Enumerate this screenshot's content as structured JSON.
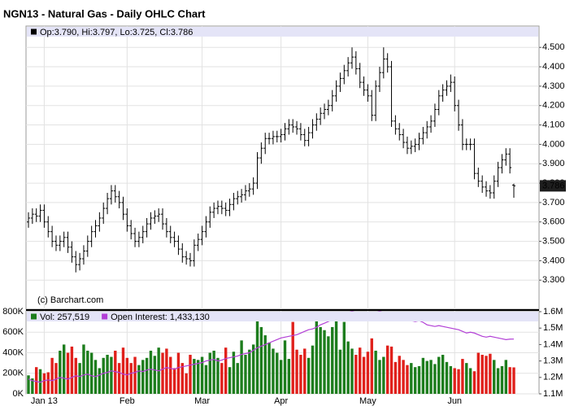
{
  "chart_data": [
    {
      "type": "ohlc",
      "title": "NGN13 - Natural Gas - Daily OHLC Chart",
      "legend_labels": [
        "Op:",
        ", Hi:",
        ", Lo:",
        ", Cl:"
      ],
      "last_value_labels": [
        "3.790",
        "3.797",
        "3.725",
        "3.786"
      ],
      "watermark": "(c) Barchart.com",
      "color": "#000000",
      "legend_color": "#000000",
      "grid": true,
      "ylim": [
        3.15,
        4.61
      ],
      "yticks": [
        {
          "value": 3.3,
          "label": "3.300"
        },
        {
          "value": 3.4,
          "label": "3.400"
        },
        {
          "value": 3.5,
          "label": "3.500"
        },
        {
          "value": 3.6,
          "label": "3.600"
        },
        {
          "value": 3.7,
          "label": "3.700"
        },
        {
          "value": 3.8,
          "label": "3.800"
        },
        {
          "value": 3.9,
          "label": "3.900"
        },
        {
          "value": 4.0,
          "label": "4.000"
        },
        {
          "value": 4.1,
          "label": "4.100"
        },
        {
          "value": 4.2,
          "label": "4.200"
        },
        {
          "value": 4.3,
          "label": "4.300"
        },
        {
          "value": 4.4,
          "label": "4.400"
        },
        {
          "value": 4.5,
          "label": "4.500"
        }
      ],
      "open": [
        3.6,
        3.62,
        3.64,
        3.63,
        3.66,
        3.6,
        3.55,
        3.5,
        3.48,
        3.5,
        3.52,
        3.47,
        3.42,
        3.38,
        3.41,
        3.45,
        3.5,
        3.55,
        3.58,
        3.62,
        3.67,
        3.72,
        3.76,
        3.73,
        3.7,
        3.64,
        3.58,
        3.54,
        3.5,
        3.52,
        3.55,
        3.59,
        3.62,
        3.63,
        3.64,
        3.59,
        3.55,
        3.52,
        3.5,
        3.46,
        3.42,
        3.41,
        3.4,
        3.48,
        3.51,
        3.55,
        3.6,
        3.65,
        3.67,
        3.68,
        3.67,
        3.66,
        3.69,
        3.72,
        3.73,
        3.74,
        3.76,
        3.77,
        3.8,
        3.93,
        3.98,
        4.03,
        4.03,
        4.04,
        4.04,
        4.05,
        4.08,
        4.1,
        4.09,
        4.08,
        4.05,
        4.02,
        4.06,
        4.1,
        4.13,
        4.16,
        4.18,
        4.2,
        4.25,
        4.3,
        4.34,
        4.38,
        4.42,
        4.45,
        4.39,
        4.32,
        4.28,
        4.25,
        4.15,
        4.3,
        4.37,
        4.44,
        4.4,
        4.12,
        4.08,
        4.05,
        4.01,
        3.98,
        3.99,
        4.0,
        4.03,
        4.06,
        4.09,
        4.12,
        4.18,
        4.25,
        4.28,
        4.3,
        4.32,
        4.2,
        4.1,
        4.0,
        4.0,
        4.0,
        3.85,
        3.81,
        3.78,
        3.76,
        3.75,
        3.81,
        3.88,
        3.92,
        3.95,
        3.79
      ],
      "high": [
        3.65,
        3.67,
        3.67,
        3.69,
        3.69,
        3.63,
        3.58,
        3.53,
        3.53,
        3.55,
        3.55,
        3.5,
        3.45,
        3.44,
        3.48,
        3.53,
        3.58,
        3.61,
        3.65,
        3.7,
        3.75,
        3.79,
        3.79,
        3.76,
        3.73,
        3.67,
        3.61,
        3.57,
        3.55,
        3.58,
        3.62,
        3.65,
        3.66,
        3.67,
        3.67,
        3.62,
        3.58,
        3.55,
        3.53,
        3.49,
        3.45,
        3.44,
        3.51,
        3.54,
        3.58,
        3.63,
        3.68,
        3.7,
        3.71,
        3.71,
        3.7,
        3.72,
        3.75,
        3.76,
        3.77,
        3.79,
        3.8,
        3.83,
        3.96,
        4.01,
        4.06,
        4.06,
        4.07,
        4.07,
        4.08,
        4.11,
        4.13,
        4.13,
        4.12,
        4.11,
        4.08,
        4.09,
        4.13,
        4.16,
        4.19,
        4.21,
        4.23,
        4.28,
        4.33,
        4.37,
        4.41,
        4.45,
        4.5,
        4.48,
        4.42,
        4.35,
        4.31,
        4.28,
        4.33,
        4.4,
        4.5,
        4.47,
        4.43,
        4.15,
        4.11,
        4.08,
        4.04,
        4.02,
        4.03,
        4.06,
        4.09,
        4.12,
        4.15,
        4.21,
        4.28,
        4.31,
        4.33,
        4.36,
        4.35,
        4.23,
        4.13,
        4.03,
        4.03,
        4.03,
        3.88,
        3.84,
        3.81,
        3.79,
        3.84,
        3.91,
        3.95,
        3.98,
        3.98,
        3.797
      ],
      "low": [
        3.57,
        3.59,
        3.6,
        3.6,
        3.57,
        3.52,
        3.47,
        3.45,
        3.45,
        3.47,
        3.44,
        3.39,
        3.34,
        3.35,
        3.38,
        3.42,
        3.47,
        3.52,
        3.55,
        3.59,
        3.64,
        3.69,
        3.7,
        3.67,
        3.61,
        3.55,
        3.51,
        3.47,
        3.47,
        3.49,
        3.52,
        3.56,
        3.59,
        3.6,
        3.56,
        3.52,
        3.49,
        3.47,
        3.43,
        3.39,
        3.38,
        3.37,
        3.37,
        3.45,
        3.48,
        3.52,
        3.57,
        3.62,
        3.64,
        3.64,
        3.63,
        3.63,
        3.66,
        3.69,
        3.7,
        3.71,
        3.73,
        3.74,
        3.77,
        3.9,
        3.95,
        4.0,
        4.0,
        4.01,
        4.01,
        4.02,
        4.05,
        4.06,
        4.05,
        4.02,
        3.99,
        3.99,
        4.03,
        4.07,
        4.1,
        4.13,
        4.15,
        4.17,
        4.22,
        4.27,
        4.31,
        4.35,
        4.39,
        4.36,
        4.29,
        4.25,
        4.22,
        4.12,
        4.12,
        4.27,
        4.34,
        4.37,
        4.09,
        4.05,
        4.02,
        3.98,
        3.95,
        3.95,
        3.96,
        3.97,
        4.0,
        4.03,
        4.06,
        4.09,
        4.15,
        4.22,
        4.25,
        4.27,
        4.17,
        4.07,
        3.97,
        3.97,
        3.97,
        3.82,
        3.78,
        3.75,
        3.73,
        3.72,
        3.72,
        3.78,
        3.85,
        3.89,
        3.85,
        3.725
      ],
      "close": [
        3.62,
        3.64,
        3.63,
        3.66,
        3.6,
        3.55,
        3.5,
        3.48,
        3.5,
        3.52,
        3.47,
        3.42,
        3.38,
        3.41,
        3.45,
        3.5,
        3.55,
        3.58,
        3.62,
        3.67,
        3.72,
        3.76,
        3.73,
        3.7,
        3.64,
        3.58,
        3.54,
        3.5,
        3.52,
        3.55,
        3.59,
        3.62,
        3.63,
        3.64,
        3.59,
        3.55,
        3.52,
        3.5,
        3.46,
        3.42,
        3.41,
        3.4,
        3.48,
        3.51,
        3.55,
        3.6,
        3.65,
        3.67,
        3.68,
        3.67,
        3.66,
        3.69,
        3.72,
        3.73,
        3.74,
        3.76,
        3.77,
        3.8,
        3.93,
        3.98,
        4.03,
        4.03,
        4.04,
        4.04,
        4.05,
        4.08,
        4.1,
        4.09,
        4.08,
        4.05,
        4.02,
        4.06,
        4.1,
        4.13,
        4.16,
        4.18,
        4.2,
        4.25,
        4.3,
        4.34,
        4.38,
        4.42,
        4.45,
        4.39,
        4.32,
        4.28,
        4.25,
        4.15,
        4.3,
        4.37,
        4.44,
        4.4,
        4.12,
        4.08,
        4.05,
        4.01,
        3.98,
        3.99,
        4.0,
        4.03,
        4.06,
        4.09,
        4.12,
        4.18,
        4.25,
        4.28,
        4.3,
        4.32,
        4.2,
        4.1,
        4.0,
        4.0,
        4.0,
        3.85,
        3.81,
        3.78,
        3.76,
        3.75,
        3.81,
        3.88,
        3.92,
        3.95,
        3.88,
        3.786
      ]
    },
    {
      "type": "bar",
      "categories": [
        null,
        null,
        null,
        null,
        "Jan 13",
        null,
        null,
        null,
        null,
        null,
        null,
        null,
        null,
        null,
        null,
        null,
        null,
        null,
        null,
        null,
        null,
        null,
        null,
        null,
        null,
        "Feb",
        null,
        null,
        null,
        null,
        null,
        null,
        null,
        null,
        null,
        null,
        null,
        null,
        null,
        null,
        null,
        null,
        null,
        null,
        "Mar",
        null,
        null,
        null,
        null,
        null,
        null,
        null,
        null,
        null,
        null,
        null,
        null,
        null,
        null,
        null,
        null,
        null,
        null,
        null,
        "Apr",
        null,
        null,
        null,
        null,
        null,
        null,
        null,
        null,
        null,
        null,
        null,
        null,
        null,
        null,
        null,
        null,
        null,
        null,
        null,
        null,
        null,
        "May",
        null,
        null,
        null,
        null,
        null,
        null,
        null,
        null,
        null,
        null,
        null,
        null,
        null,
        null,
        null,
        null,
        null,
        null,
        null,
        null,
        null,
        "Jun",
        null,
        null,
        null,
        null,
        null,
        null,
        null,
        null,
        null,
        null,
        null,
        null,
        null,
        null,
        null
      ],
      "grid": true,
      "ylim": [
        0,
        800000
      ],
      "yticks": [
        {
          "value": 0,
          "label": "0K"
        },
        {
          "value": 200000,
          "label": "200K"
        },
        {
          "value": 400000,
          "label": "400K"
        },
        {
          "value": 600000,
          "label": "600K"
        },
        {
          "value": 800000,
          "label": "800K"
        }
      ],
      "y2lim": [
        1100000,
        1600000
      ],
      "y2ticks": [
        {
          "value": 1100000,
          "label": "1.1M"
        },
        {
          "value": 1200000,
          "label": "1.2M"
        },
        {
          "value": 1300000,
          "label": "1.3M"
        },
        {
          "value": 1400000,
          "label": "1.4M"
        },
        {
          "value": 1500000,
          "label": "1.5M"
        },
        {
          "value": 1600000,
          "label": "1.6M"
        }
      ],
      "series": [
        {
          "name": "Vol:",
          "value_label": "257,519",
          "color": "#1d7d1d",
          "up_color": "#1d7d1d",
          "down_color": "#e0201b",
          "values": [
            180000,
            150000,
            260000,
            240000,
            200000,
            210000,
            350000,
            300000,
            420000,
            480000,
            400000,
            460000,
            350000,
            300000,
            480000,
            420000,
            400000,
            330000,
            250000,
            350000,
            380000,
            360000,
            420000,
            300000,
            450000,
            350000,
            300000,
            360000,
            280000,
            330000,
            350000,
            420000,
            370000,
            450000,
            400000,
            440000,
            360000,
            250000,
            400000,
            300000,
            200000,
            380000,
            340000,
            330000,
            360000,
            280000,
            400000,
            420000,
            350000,
            300000,
            450000,
            260000,
            410000,
            300000,
            520000,
            380000,
            430000,
            480000,
            780000,
            650000,
            570000,
            500000,
            440000,
            400000,
            330000,
            520000,
            340000,
            700000,
            430000,
            380000,
            440000,
            350000,
            470000,
            800000,
            650000,
            620000,
            560000,
            650000,
            710000,
            430000,
            700000,
            510000,
            440000,
            380000,
            450000,
            360000,
            410000,
            540000,
            420000,
            330000,
            360000,
            470000,
            460000,
            310000,
            370000,
            330000,
            280000,
            300000,
            260000,
            270000,
            350000,
            320000,
            330000,
            290000,
            360000,
            380000,
            310000,
            270000,
            250000,
            240000,
            340000,
            300000,
            250000,
            220000,
            400000,
            380000,
            370000,
            390000,
            330000,
            250000,
            270000,
            330000,
            260000,
            257519
          ]
        },
        {
          "name": "Open Interest:",
          "value_label": "1,433,130",
          "color": "#b23fd6",
          "axis": "y2",
          "values": [
            1190000,
            1180000,
            1175000,
            1170000,
            1180000,
            1185000,
            1180000,
            1190000,
            1200000,
            1195000,
            1190000,
            1200000,
            1210000,
            1205000,
            1215000,
            1220000,
            1210000,
            1205000,
            1215000,
            1225000,
            1230000,
            1240000,
            1235000,
            1230000,
            1220000,
            1215000,
            1225000,
            1230000,
            1240000,
            1235000,
            1245000,
            1250000,
            1245000,
            1240000,
            1250000,
            1260000,
            1255000,
            1250000,
            1260000,
            1265000,
            1270000,
            1275000,
            1280000,
            1285000,
            1290000,
            1300000,
            1305000,
            1310000,
            1300000,
            1305000,
            1315000,
            1320000,
            1325000,
            1330000,
            1340000,
            1345000,
            1350000,
            1365000,
            1380000,
            1390000,
            1400000,
            1410000,
            1420000,
            1430000,
            1440000,
            1445000,
            1450000,
            1455000,
            1460000,
            1470000,
            1480000,
            1490000,
            1495000,
            1505000,
            1520000,
            1530000,
            1540000,
            1550000,
            1560000,
            1575000,
            1585000,
            1595000,
            1600000,
            1595000,
            1590000,
            1585000,
            1580000,
            1590000,
            1595000,
            1600000,
            1595000,
            1590000,
            1575000,
            1565000,
            1560000,
            1555000,
            1550000,
            1545000,
            1540000,
            1545000,
            1535000,
            1520000,
            1515000,
            1510000,
            1515000,
            1510000,
            1505000,
            1500000,
            1495000,
            1490000,
            1480000,
            1470000,
            1475000,
            1470000,
            1460000,
            1450000,
            1445000,
            1450000,
            1445000,
            1440000,
            1435000,
            1430000,
            1433000,
            1433130
          ]
        }
      ]
    }
  ]
}
